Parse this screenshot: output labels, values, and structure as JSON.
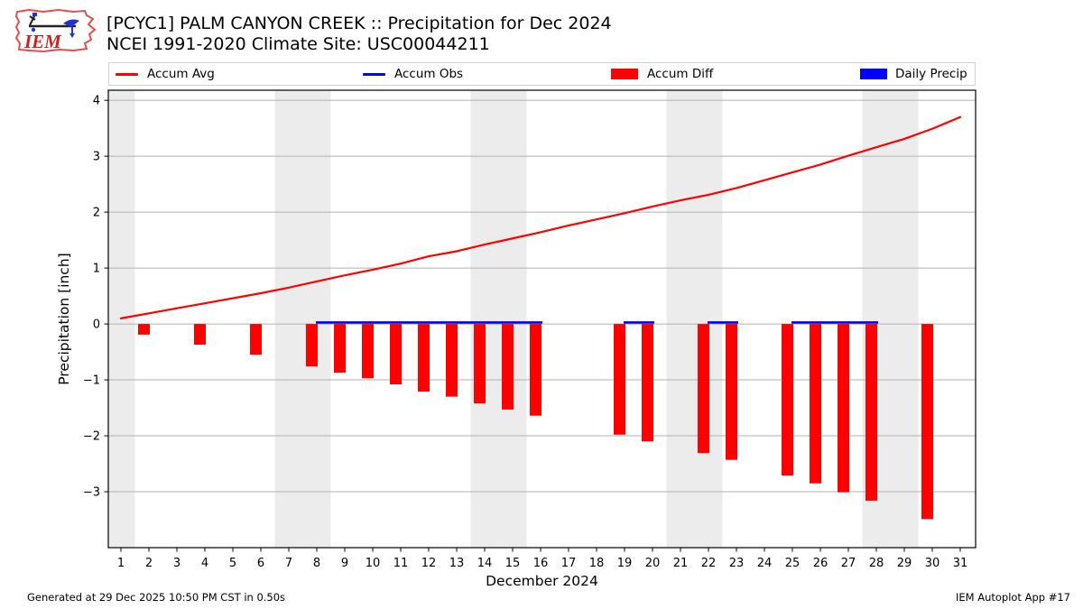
{
  "header": {
    "title_line1": "[PCYC1] PALM CANYON CREEK :: Precipitation for Dec 2024",
    "title_line2": "NCEI 1991-2020 Climate Site: USC00044211",
    "logo_text": "IEM"
  },
  "legend": {
    "items": [
      {
        "label": "Accum Avg",
        "swatch": "line",
        "color": "#ff0000"
      },
      {
        "label": "Accum Obs",
        "swatch": "line",
        "color": "#0000ff"
      },
      {
        "label": "Accum Diff",
        "swatch": "rect",
        "color": "#ff0000"
      },
      {
        "label": "Daily Precip",
        "swatch": "rect",
        "color": "#0000ff"
      }
    ]
  },
  "chart_data": {
    "type": "bar",
    "title": "[PCYC1] PALM CANYON CREEK :: Precipitation for Dec 2024",
    "subtitle": "NCEI 1991-2020 Climate Site: USC00044211",
    "xlabel": "December 2024",
    "ylabel": "Precipitation [inch]",
    "xlim": [
      0.548,
      31.548
    ],
    "ylim": [
      -4.0,
      4.18
    ],
    "x_ticks": [
      1,
      2,
      3,
      4,
      5,
      6,
      7,
      8,
      9,
      10,
      11,
      12,
      13,
      14,
      15,
      16,
      17,
      18,
      19,
      20,
      21,
      22,
      23,
      24,
      25,
      26,
      27,
      28,
      29,
      30,
      31
    ],
    "y_tick_values": [
      4,
      3,
      2,
      1,
      0,
      -1,
      -2,
      -3
    ],
    "y_tick_labels": [
      "4",
      "3",
      "2",
      "1",
      "0",
      "−1",
      "−2",
      "−3"
    ],
    "weekend_bands": [
      [
        0.548,
        1.5
      ],
      [
        6.5,
        8.5
      ],
      [
        13.5,
        15.5
      ],
      [
        20.5,
        22.5
      ],
      [
        27.5,
        29.5
      ]
    ],
    "grid": true,
    "legend_position": "top",
    "colors": {
      "band": "#ececec",
      "grid": "#b0b0b0",
      "frame": "#000000"
    },
    "series": [
      {
        "name": "Accum Avg",
        "type": "line",
        "color": "#ff0000",
        "x": [
          1,
          2,
          3,
          4,
          5,
          6,
          7,
          8,
          9,
          10,
          11,
          12,
          13,
          14,
          15,
          16,
          17,
          18,
          19,
          20,
          21,
          22,
          23,
          24,
          25,
          26,
          27,
          28,
          29,
          30,
          31
        ],
        "y": [
          0.1,
          0.19,
          0.28,
          0.37,
          0.46,
          0.55,
          0.65,
          0.76,
          0.87,
          0.97,
          1.08,
          1.21,
          1.3,
          1.42,
          1.53,
          1.64,
          1.76,
          1.87,
          1.98,
          2.1,
          2.21,
          2.31,
          2.43,
          2.57,
          2.71,
          2.85,
          3.01,
          3.16,
          3.31,
          3.49,
          3.7
        ]
      },
      {
        "name": "Accum Obs",
        "type": "line",
        "color": "#0000ff",
        "segments": [
          {
            "days": [
              8,
              16
            ],
            "value": 0
          },
          {
            "days": [
              19,
              20
            ],
            "value": 0
          },
          {
            "days": [
              22,
              23
            ],
            "value": 0
          },
          {
            "days": [
              25,
              28
            ],
            "value": 0
          }
        ]
      },
      {
        "name": "Accum Diff",
        "type": "bar",
        "color": "#ff0000",
        "days": [
          2,
          4,
          6,
          8,
          9,
          10,
          11,
          12,
          13,
          14,
          15,
          16,
          19,
          20,
          22,
          23,
          25,
          26,
          27,
          28,
          30
        ],
        "values": [
          -0.19,
          -0.37,
          -0.55,
          -0.76,
          -0.87,
          -0.97,
          -1.08,
          -1.21,
          -1.3,
          -1.42,
          -1.53,
          -1.64,
          -1.98,
          -2.1,
          -2.31,
          -2.43,
          -2.71,
          -2.85,
          -3.01,
          -3.16,
          -3.49
        ]
      },
      {
        "name": "Daily Precip",
        "type": "bar",
        "color": "#0000ff",
        "days": [],
        "values": []
      }
    ]
  },
  "footer": {
    "left": "Generated at 29 Dec 2025 10:50 PM CST in 0.50s",
    "right": "IEM Autoplot App #17"
  }
}
